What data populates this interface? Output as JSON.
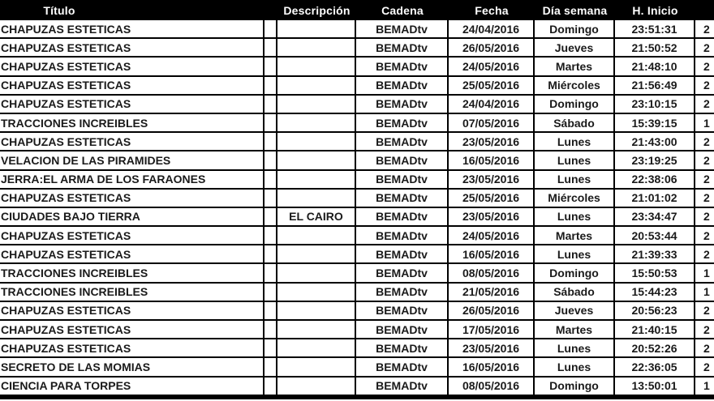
{
  "table": {
    "columns": [
      {
        "key": "titulo",
        "label": "Título"
      },
      {
        "key": "spacer",
        "label": ""
      },
      {
        "key": "descripcion",
        "label": "Descripción"
      },
      {
        "key": "cadena",
        "label": "Cadena"
      },
      {
        "key": "fecha",
        "label": "Fecha"
      },
      {
        "key": "dia_semana",
        "label": "Día semana"
      },
      {
        "key": "h_inicio",
        "label": "H. Inicio"
      },
      {
        "key": "h_fin_partial",
        "label": ""
      }
    ],
    "rows": [
      {
        "titulo": "CHAPUZAS ESTETICAS",
        "descripcion": "",
        "cadena": "BEMADtv",
        "fecha": "24/04/2016",
        "dia_semana": "Domingo",
        "h_inicio": "23:51:31",
        "h_fin_partial": "2"
      },
      {
        "titulo": "CHAPUZAS ESTETICAS",
        "descripcion": "",
        "cadena": "BEMADtv",
        "fecha": "26/05/2016",
        "dia_semana": "Jueves",
        "h_inicio": "21:50:52",
        "h_fin_partial": "2"
      },
      {
        "titulo": "CHAPUZAS ESTETICAS",
        "descripcion": "",
        "cadena": "BEMADtv",
        "fecha": "24/05/2016",
        "dia_semana": "Martes",
        "h_inicio": "21:48:10",
        "h_fin_partial": "2"
      },
      {
        "titulo": "CHAPUZAS ESTETICAS",
        "descripcion": "",
        "cadena": "BEMADtv",
        "fecha": "25/05/2016",
        "dia_semana": "Miércoles",
        "h_inicio": "21:56:49",
        "h_fin_partial": "2"
      },
      {
        "titulo": "CHAPUZAS ESTETICAS",
        "descripcion": "",
        "cadena": "BEMADtv",
        "fecha": "24/04/2016",
        "dia_semana": "Domingo",
        "h_inicio": "23:10:15",
        "h_fin_partial": "2"
      },
      {
        "titulo": "TRACCIONES INCREIBLES",
        "descripcion": "",
        "cadena": "BEMADtv",
        "fecha": "07/05/2016",
        "dia_semana": "Sábado",
        "h_inicio": "15:39:15",
        "h_fin_partial": "1"
      },
      {
        "titulo": "CHAPUZAS ESTETICAS",
        "descripcion": "",
        "cadena": "BEMADtv",
        "fecha": "23/05/2016",
        "dia_semana": "Lunes",
        "h_inicio": "21:43:00",
        "h_fin_partial": "2"
      },
      {
        "titulo": "VELACION DE LAS PIRAMIDES",
        "descripcion": "",
        "cadena": "BEMADtv",
        "fecha": "16/05/2016",
        "dia_semana": "Lunes",
        "h_inicio": "23:19:25",
        "h_fin_partial": "2"
      },
      {
        "titulo": "JERRA:EL ARMA DE LOS FARAONES",
        "descripcion": "",
        "cadena": "BEMADtv",
        "fecha": "23/05/2016",
        "dia_semana": "Lunes",
        "h_inicio": "22:38:06",
        "h_fin_partial": "2"
      },
      {
        "titulo": "CHAPUZAS ESTETICAS",
        "descripcion": "",
        "cadena": "BEMADtv",
        "fecha": "25/05/2016",
        "dia_semana": "Miércoles",
        "h_inicio": "21:01:02",
        "h_fin_partial": "2"
      },
      {
        "titulo": "CIUDADES BAJO TIERRA",
        "descripcion": "EL CAIRO",
        "cadena": "BEMADtv",
        "fecha": "23/05/2016",
        "dia_semana": "Lunes",
        "h_inicio": "23:34:47",
        "h_fin_partial": "2"
      },
      {
        "titulo": "CHAPUZAS ESTETICAS",
        "descripcion": "",
        "cadena": "BEMADtv",
        "fecha": "24/05/2016",
        "dia_semana": "Martes",
        "h_inicio": "20:53:44",
        "h_fin_partial": "2"
      },
      {
        "titulo": "CHAPUZAS ESTETICAS",
        "descripcion": "",
        "cadena": "BEMADtv",
        "fecha": "16/05/2016",
        "dia_semana": "Lunes",
        "h_inicio": "21:39:33",
        "h_fin_partial": "2"
      },
      {
        "titulo": "TRACCIONES INCREIBLES",
        "descripcion": "",
        "cadena": "BEMADtv",
        "fecha": "08/05/2016",
        "dia_semana": "Domingo",
        "h_inicio": "15:50:53",
        "h_fin_partial": "1"
      },
      {
        "titulo": "TRACCIONES INCREIBLES",
        "descripcion": "",
        "cadena": "BEMADtv",
        "fecha": "21/05/2016",
        "dia_semana": "Sábado",
        "h_inicio": "15:44:23",
        "h_fin_partial": "1"
      },
      {
        "titulo": "CHAPUZAS ESTETICAS",
        "descripcion": "",
        "cadena": "BEMADtv",
        "fecha": "26/05/2016",
        "dia_semana": "Jueves",
        "h_inicio": "20:56:23",
        "h_fin_partial": "2"
      },
      {
        "titulo": "CHAPUZAS ESTETICAS",
        "descripcion": "",
        "cadena": "BEMADtv",
        "fecha": "17/05/2016",
        "dia_semana": "Martes",
        "h_inicio": "21:40:15",
        "h_fin_partial": "2"
      },
      {
        "titulo": "CHAPUZAS ESTETICAS",
        "descripcion": "",
        "cadena": "BEMADtv",
        "fecha": "23/05/2016",
        "dia_semana": "Lunes",
        "h_inicio": "20:52:26",
        "h_fin_partial": "2"
      },
      {
        "titulo": "SECRETO DE LAS MOMIAS",
        "descripcion": "",
        "cadena": "BEMADtv",
        "fecha": "16/05/2016",
        "dia_semana": "Lunes",
        "h_inicio": "22:36:05",
        "h_fin_partial": "2"
      },
      {
        "titulo": "CIENCIA PARA TORPES",
        "descripcion": "",
        "cadena": "BEMADtv",
        "fecha": "08/05/2016",
        "dia_semana": "Domingo",
        "h_inicio": "13:50:01",
        "h_fin_partial": "1"
      }
    ],
    "colors": {
      "header_bg": "#000000",
      "header_text": "#ffffff",
      "cell_bg": "#ffffff",
      "cell_text": "#1a1a1a",
      "border": "#000000"
    }
  }
}
